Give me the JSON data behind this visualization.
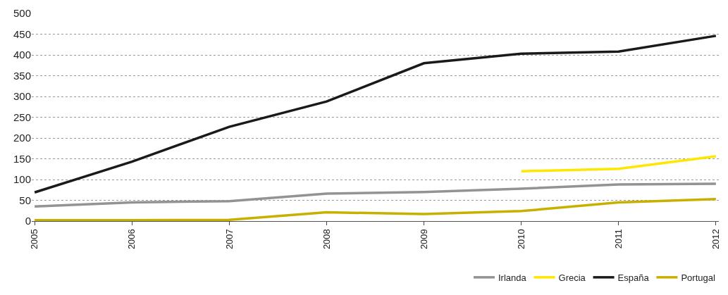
{
  "chart_data": {
    "type": "line",
    "categories": [
      "2005",
      "2006",
      "2007",
      "2008",
      "2009",
      "2010",
      "2011",
      "2012"
    ],
    "series": [
      {
        "name": "Irlanda",
        "color": "#939393",
        "values": [
          35,
          45,
          48,
          66,
          70,
          78,
          88,
          90
        ]
      },
      {
        "name": "Grecia",
        "color": "#ffe600",
        "values": [
          null,
          null,
          null,
          null,
          null,
          120,
          126,
          156
        ]
      },
      {
        "name": "España",
        "color": "#1a1a1a",
        "values": [
          69,
          143,
          227,
          288,
          380,
          403,
          408,
          446
        ]
      },
      {
        "name": "Portugal",
        "color": "#c7b000",
        "values": [
          2,
          2,
          3,
          21,
          17,
          24,
          45,
          53
        ]
      }
    ],
    "ylim": [
      0,
      500
    ],
    "yticks": [
      0,
      50,
      100,
      150,
      200,
      250,
      300,
      350,
      400,
      450,
      500
    ],
    "grid": "y",
    "legend": "bottom right",
    "marker": "none",
    "line_style": "solid"
  }
}
